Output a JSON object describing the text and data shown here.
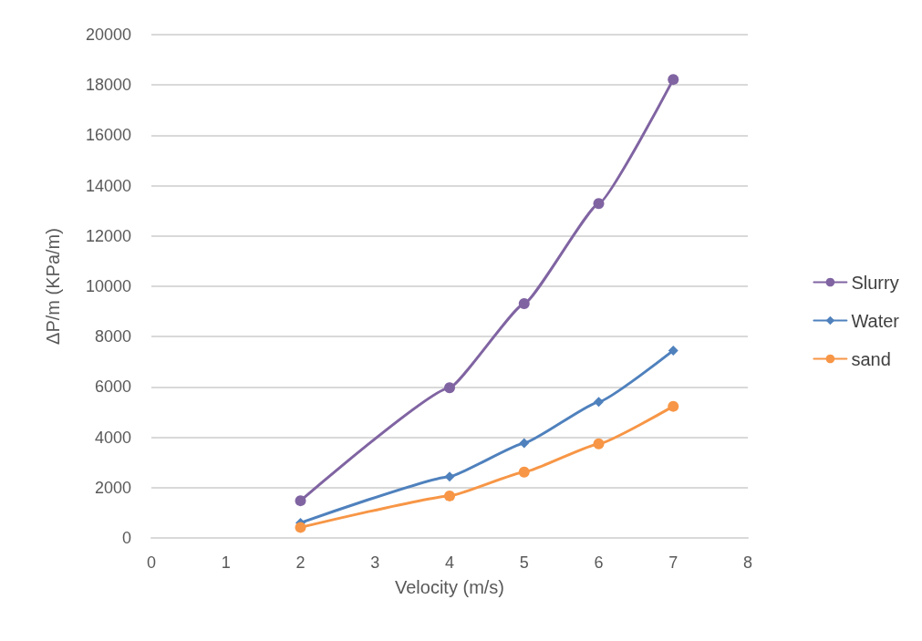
{
  "chart_data": {
    "type": "line",
    "xlabel": "Velocity (m/s)",
    "ylabel": "ΔP/m (KPa/m)",
    "x": [
      2,
      4,
      5,
      6,
      7
    ],
    "series": [
      {
        "name": "Slurry",
        "color": "#8064a2",
        "marker": "circle",
        "values": [
          1480,
          5970,
          9310,
          13290,
          18220
        ]
      },
      {
        "name": "Water",
        "color": "#4f81bd",
        "marker": "diamond",
        "values": [
          600,
          2440,
          3770,
          5410,
          7450
        ]
      },
      {
        "name": "sand",
        "color": "#f79646",
        "marker": "circle",
        "values": [
          420,
          1670,
          2620,
          3740,
          5230
        ]
      }
    ],
    "xlim": [
      0,
      8
    ],
    "xticks": [
      0,
      1,
      2,
      3,
      4,
      5,
      6,
      7,
      8
    ],
    "ylim": [
      0,
      20000
    ],
    "yticks": [
      0,
      2000,
      4000,
      6000,
      8000,
      10000,
      12000,
      14000,
      16000,
      18000,
      20000
    ],
    "grid": "y",
    "legend": "right"
  }
}
